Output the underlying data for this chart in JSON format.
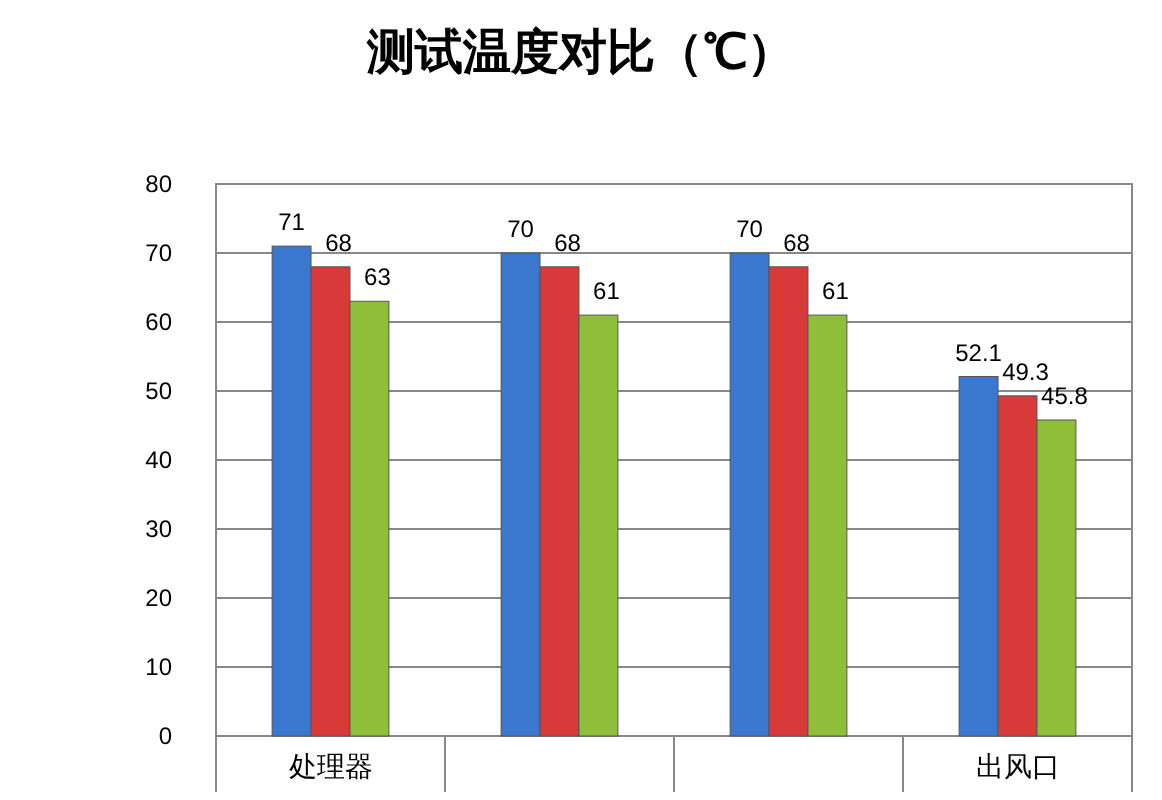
{
  "chart_data": {
    "type": "bar",
    "title": "测试温度对比（℃）",
    "categories": [
      "处理器",
      null,
      null,
      "出风口"
    ],
    "series": [
      {
        "color": "#3a78cf",
        "values": [
          71,
          70,
          70,
          52.1
        ]
      },
      {
        "color": "#d83a3a",
        "values": [
          68,
          68,
          68,
          49.3
        ]
      },
      {
        "color": "#8fbf3a",
        "values": [
          63,
          61,
          61,
          45.8
        ]
      }
    ],
    "ylim": [
      0,
      80
    ],
    "yticks": [
      0,
      10,
      20,
      30,
      40,
      50,
      60,
      70,
      80
    ],
    "grid": "y",
    "data_labels": true
  }
}
